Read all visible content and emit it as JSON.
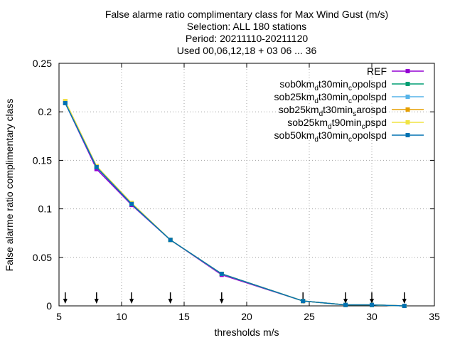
{
  "title": {
    "lines": [
      "False alarme ratio complimentary class  for Max Wind Gust (m/s)",
      "Selection: ALL     180 stations",
      "Period: 20211110-20211120",
      "Used 00,06,12,18 + 03 06 ... 36"
    ]
  },
  "chart_data": {
    "type": "line",
    "xlabel": "thresholds m/s",
    "ylabel": "False alarme ratio complimentary class",
    "xlim": [
      5,
      35
    ],
    "ylim": [
      0,
      0.25
    ],
    "xticks": [
      5,
      10,
      15,
      20,
      25,
      30,
      35
    ],
    "yticks": [
      0,
      0.05,
      0.1,
      0.15,
      0.2,
      0.25
    ],
    "ytick_labels": [
      "0",
      "0.05",
      "0.1",
      "0.15",
      "0.2",
      "0.25"
    ],
    "grid": true,
    "legend_position": "top-right",
    "x": [
      5.5,
      8,
      10.8,
      13.9,
      18,
      24.5,
      27.9,
      30,
      32.6
    ],
    "threshold_arrows_x": [
      5.5,
      8,
      10.8,
      13.9,
      18,
      24.5,
      27.9,
      30,
      32.6
    ],
    "series": [
      {
        "name": "REF",
        "color": "#9400d3",
        "values": [
          0.209,
          0.141,
          0.104,
          0.068,
          0.032,
          0.005,
          0.001,
          0.001,
          0.0
        ]
      },
      {
        "name": "sob0km_d t30min_c opolspd",
        "legend": {
          "base": "sob0km",
          "parts": [
            [
              "sub",
              "d"
            ],
            [
              "norm",
              "t30min"
            ],
            [
              "sub",
              "c"
            ],
            [
              "norm",
              "opolspd"
            ]
          ]
        },
        "color": "#009e73",
        "values": [
          0.209,
          0.143,
          0.105,
          0.068,
          0.033,
          0.005,
          0.001,
          0.001,
          0.0
        ]
      },
      {
        "name": "sob25km_d t30min_c opolspd",
        "legend": {
          "base": "sob25km",
          "parts": [
            [
              "sub",
              "d"
            ],
            [
              "norm",
              "t30min"
            ],
            [
              "sub",
              "c"
            ],
            [
              "norm",
              "opolspd"
            ]
          ]
        },
        "color": "#56b4e9",
        "values": [
          0.209,
          0.143,
          0.105,
          0.068,
          0.033,
          0.005,
          0.001,
          0.001,
          0.0
        ]
      },
      {
        "name": "sob25km_d t30min_s arospd",
        "legend": {
          "base": "sob25km",
          "parts": [
            [
              "sub",
              "d"
            ],
            [
              "norm",
              "t30min"
            ],
            [
              "sub",
              "s"
            ],
            [
              "norm",
              "arospd"
            ]
          ]
        },
        "color": "#e69f00",
        "values": [
          0.211,
          0.144,
          0.106,
          0.068,
          0.033,
          0.005,
          0.001,
          0.001,
          0.0
        ]
      },
      {
        "name": "sob25km_d t90min_c pspd",
        "legend": {
          "base": "sob25km",
          "parts": [
            [
              "sub",
              "d"
            ],
            [
              "norm",
              "t90min"
            ],
            [
              "sub",
              "c"
            ],
            [
              "norm",
              "pspd"
            ]
          ]
        },
        "color": "#f0e442",
        "values": [
          0.211,
          0.144,
          0.106,
          0.068,
          0.033,
          0.005,
          0.001,
          0.001,
          0.0
        ]
      },
      {
        "name": "sob50km_d t30min_c opolspd",
        "legend": {
          "base": "sob50km",
          "parts": [
            [
              "sub",
              "d"
            ],
            [
              "norm",
              "t30min"
            ],
            [
              "sub",
              "c"
            ],
            [
              "norm",
              "opolspd"
            ]
          ]
        },
        "color": "#0072b2",
        "values": [
          0.209,
          0.143,
          0.105,
          0.068,
          0.033,
          0.005,
          0.001,
          0.001,
          0.0
        ]
      }
    ]
  }
}
